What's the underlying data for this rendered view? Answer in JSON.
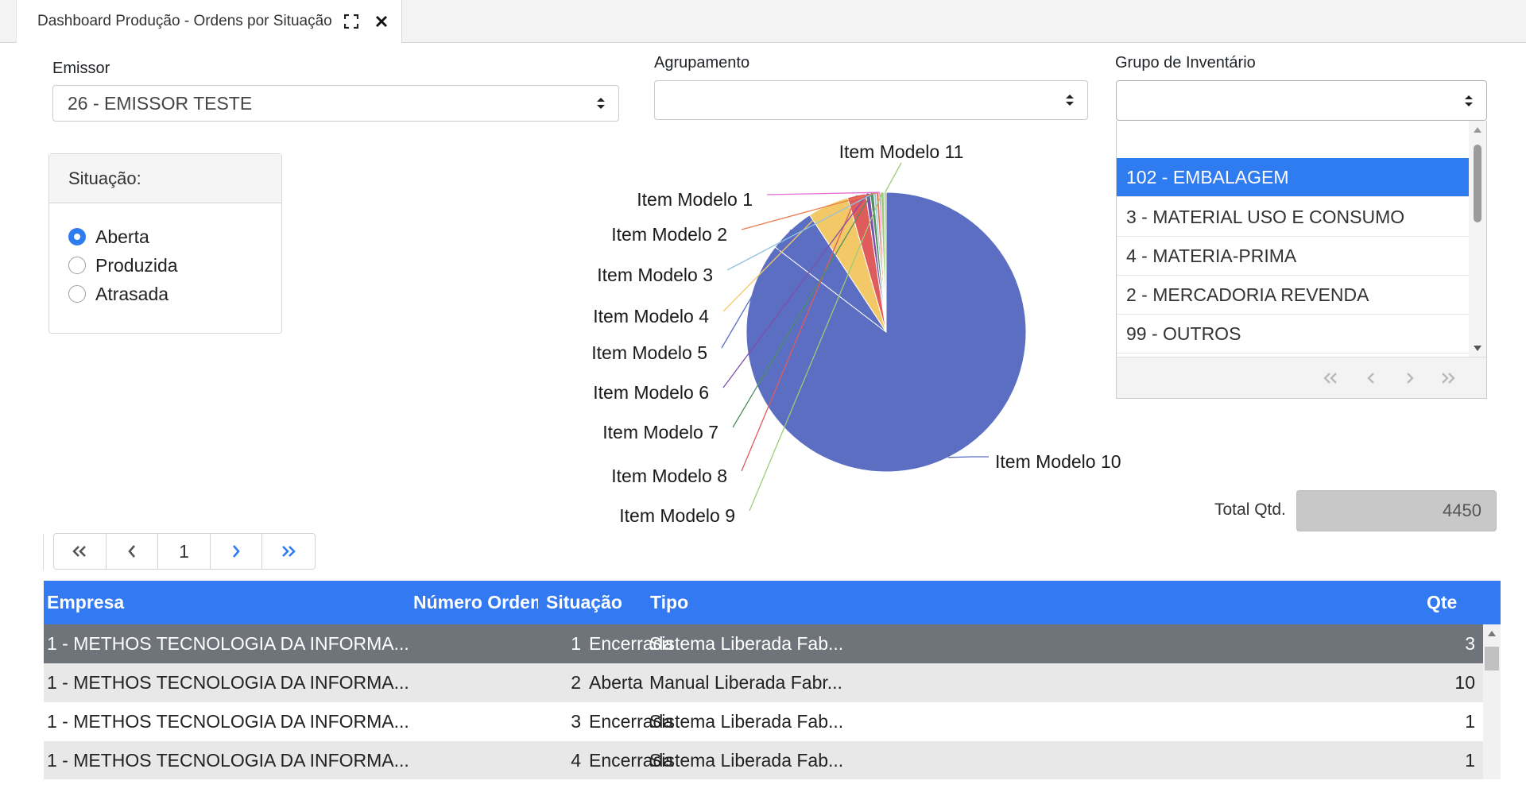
{
  "tab": {
    "title": "Dashboard Produção - Ordens por Situação"
  },
  "filters": {
    "emissor_label": "Emissor",
    "emissor_value": "26 - EMISSOR TESTE",
    "agrupamento_label": "Agrupamento",
    "agrupamento_value": "",
    "grupo_label": "Grupo de Inventário",
    "grupo_value": ""
  },
  "situacao": {
    "title": "Situação:",
    "options": [
      {
        "label": "Aberta",
        "checked": true
      },
      {
        "label": "Produzida",
        "checked": false
      },
      {
        "label": "Atrasada",
        "checked": false
      }
    ]
  },
  "grupo_list": {
    "items": [
      "102 - EMBALAGEM",
      "3 - MATERIAL USO E CONSUMO",
      "4 - MATERIA-PRIMA",
      "2 - MERCADORIA REVENDA",
      "99 - OUTROS"
    ],
    "selected_index": 0
  },
  "chart_data": {
    "type": "pie",
    "labels": [
      "Item Modelo 1",
      "Item Modelo 2",
      "Item Modelo 3",
      "Item Modelo 4",
      "Item Modelo 5",
      "Item Modelo 6",
      "Item Modelo 7",
      "Item Modelo 8",
      "Item Modelo 9",
      "Item Modelo 10",
      "Item Modelo 11"
    ],
    "values": [
      9,
      14,
      12,
      212,
      240,
      22,
      19,
      94,
      17,
      3800,
      11
    ],
    "colors": [
      "#e36ad6",
      "#ea7a4c",
      "#8ec3e3",
      "#f2c966",
      "#5b6ec2",
      "#7e4fa8",
      "#4f8f62",
      "#e05b5b",
      "#9ccc76",
      "#5b6ec2",
      "#9ccc76"
    ]
  },
  "total": {
    "label": "Total Qtd.",
    "value": "4450"
  },
  "pager": {
    "page": "1"
  },
  "table": {
    "columns": [
      "Empresa",
      "Número Ordem",
      "Situação",
      "Tipo",
      "Qte"
    ],
    "rows": [
      {
        "empresa": "1 - METHOS TECNOLOGIA DA INFORMA...",
        "numero": "1",
        "situacao": "Encerrada",
        "tipo": "Sistema Liberada Fab...",
        "qte": "3"
      },
      {
        "empresa": "1 - METHOS TECNOLOGIA DA INFORMA...",
        "numero": "2",
        "situacao": "Aberta",
        "tipo": "Manual Liberada Fabr...",
        "qte": "10"
      },
      {
        "empresa": "1 - METHOS TECNOLOGIA DA INFORMA...",
        "numero": "3",
        "situacao": "Encerrada",
        "tipo": "Sistema Liberada Fab...",
        "qte": "1"
      },
      {
        "empresa": "1 - METHOS TECNOLOGIA DA INFORMA...",
        "numero": "4",
        "situacao": "Encerrada",
        "tipo": "Sistema Liberada Fab...",
        "qte": "1"
      }
    ],
    "selected_index": 0
  }
}
